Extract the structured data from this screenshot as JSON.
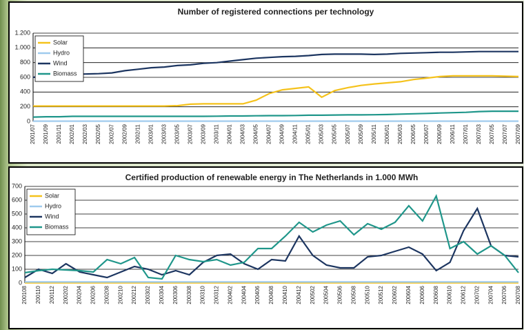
{
  "chart_data": [
    {
      "type": "line",
      "title": "Number of registered connections per technology",
      "categories": [
        "2001/07",
        "2001/09",
        "2001/11",
        "2002/01",
        "2002/03",
        "2002/05",
        "2002/07",
        "2002/09",
        "2002/11",
        "2003/01",
        "2003/03",
        "2003/05",
        "2003/07",
        "2003/09",
        "2003/11",
        "2004/01",
        "2004/03",
        "2004/05",
        "2004/07",
        "2004/09",
        "2004/11",
        "2005/01",
        "2005/03",
        "2005/05",
        "2005/07",
        "2005/09",
        "2005/11",
        "2006/01",
        "2006/03",
        "2006/05",
        "2006/07",
        "2006/09",
        "2006/11",
        "2007/01",
        "2007/03",
        "2007/05",
        "2007/07",
        "2007/09"
      ],
      "series": [
        {
          "name": "Solar",
          "color": "#f5c21b",
          "values": [
            210,
            210,
            210,
            210,
            210,
            210,
            210,
            210,
            210,
            210,
            210,
            215,
            235,
            240,
            240,
            240,
            240,
            290,
            380,
            430,
            450,
            470,
            330,
            420,
            460,
            490,
            510,
            525,
            540,
            570,
            590,
            610,
            620,
            620,
            620,
            620,
            615,
            610
          ]
        },
        {
          "name": "Hydro",
          "color": "#9fcbee",
          "values": [
            5,
            5,
            5,
            5,
            5,
            5,
            5,
            5,
            5,
            5,
            5,
            5,
            5,
            5,
            5,
            5,
            5,
            5,
            5,
            5,
            5,
            5,
            5,
            5,
            5,
            5,
            5,
            5,
            5,
            5,
            5,
            5,
            5,
            5,
            5,
            5,
            5,
            5
          ]
        },
        {
          "name": "Wind",
          "color": "#1c3560",
          "values": [
            600,
            620,
            640,
            640,
            645,
            650,
            660,
            690,
            710,
            730,
            740,
            760,
            770,
            790,
            800,
            820,
            840,
            860,
            870,
            880,
            885,
            895,
            910,
            915,
            915,
            915,
            910,
            915,
            925,
            930,
            935,
            940,
            940,
            945,
            950,
            950,
            950,
            950
          ]
        },
        {
          "name": "Biomass",
          "color": "#1f968a",
          "values": [
            60,
            65,
            65,
            70,
            70,
            70,
            70,
            70,
            70,
            70,
            70,
            70,
            70,
            70,
            72,
            75,
            75,
            78,
            80,
            80,
            82,
            85,
            85,
            88,
            90,
            90,
            92,
            95,
            100,
            105,
            110,
            115,
            120,
            125,
            135,
            140,
            140,
            140
          ]
        }
      ],
      "ylim": [
        0,
        1200
      ],
      "yticks": [
        0,
        200,
        400,
        600,
        800,
        {
          "value": 1000,
          "label": "1.000"
        },
        {
          "value": 1200,
          "label": "1.200"
        }
      ],
      "grid": true,
      "legend": "top-left"
    },
    {
      "type": "line",
      "title": "Certified production of renewable energy in The Netherlands in 1.000 MWh",
      "categories": [
        "200108",
        "200110",
        "200112",
        "200202",
        "200204",
        "200206",
        "200208",
        "200210",
        "200212",
        "200302",
        "200304",
        "200306",
        "200308",
        "200310",
        "200312",
        "200402",
        "200404",
        "200406",
        "200408",
        "200410",
        "200412",
        "200502",
        "200504",
        "200506",
        "200508",
        "200510",
        "200512",
        "200602",
        "200604",
        "200606",
        "200608",
        "200610",
        "200612",
        "200702",
        "200704",
        "200706",
        "200708"
      ],
      "series": [
        {
          "name": "Solar",
          "color": "#f5c21b",
          "values": [
            2,
            2,
            2,
            2,
            2,
            2,
            2,
            2,
            2,
            2,
            2,
            2,
            2,
            2,
            2,
            2,
            2,
            2,
            2,
            2,
            2,
            2,
            2,
            2,
            2,
            2,
            2,
            2,
            2,
            2,
            2,
            2,
            2,
            2,
            2,
            2,
            2
          ]
        },
        {
          "name": "Hydro",
          "color": "#9fcbee",
          "values": [
            8,
            8,
            8,
            8,
            8,
            8,
            8,
            8,
            8,
            8,
            8,
            8,
            8,
            8,
            8,
            8,
            8,
            8,
            8,
            8,
            8,
            8,
            8,
            8,
            8,
            8,
            8,
            8,
            8,
            8,
            8,
            8,
            8,
            8,
            8,
            8,
            8
          ]
        },
        {
          "name": "Wind",
          "color": "#1c3560",
          "values": [
            40,
            100,
            70,
            140,
            80,
            60,
            40,
            80,
            120,
            100,
            60,
            90,
            60,
            150,
            200,
            210,
            140,
            100,
            170,
            160,
            340,
            200,
            130,
            110,
            110,
            190,
            200,
            230,
            260,
            210,
            90,
            150,
            380,
            540,
            270,
            200,
            190
          ]
        },
        {
          "name": "Biomass",
          "color": "#1f968a",
          "values": [
            75,
            90,
            100,
            95,
            90,
            80,
            170,
            140,
            185,
            40,
            30,
            200,
            170,
            155,
            170,
            130,
            150,
            250,
            250,
            340,
            440,
            370,
            420,
            450,
            350,
            430,
            390,
            440,
            560,
            450,
            630,
            250,
            300,
            210,
            270,
            200,
            75
          ]
        }
      ],
      "ylim": [
        0,
        700
      ],
      "yticks": [
        0,
        100,
        200,
        300,
        400,
        500,
        600,
        700
      ],
      "grid": true,
      "legend": "top-left"
    }
  ]
}
